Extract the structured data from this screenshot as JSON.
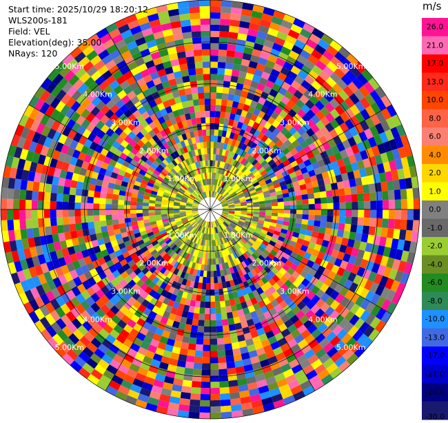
{
  "header": {
    "start_time": "Start time: 2025/10/29 18:20:12",
    "site": "WLS200s-181",
    "field": "Field: VEL",
    "elevation": "Elevation(deg): 35.00",
    "nrays": "NRays: 120"
  },
  "colorbar": {
    "unit": "m/s",
    "ticks": [
      "26.0",
      "21.0",
      "17.0",
      "13.0",
      "10.0",
      "8.0",
      "6.0",
      "4.0",
      "2.0",
      "1.0",
      "0.0",
      "-1.0",
      "-2.0",
      "-4.0",
      "-6.0",
      "-8.0",
      "-10.0",
      "-13.0",
      "-17.0",
      "-21.0",
      "-26.0",
      "-30.0"
    ],
    "colors": [
      "#ff1493",
      "#ff69b4",
      "#ff0000",
      "#ff2a1a",
      "#ff4500",
      "#ff6347",
      "#fa8072",
      "#ff8c00",
      "#ffd700",
      "#ffff00",
      "#808080",
      "#696969",
      "#9acd32",
      "#6b8e23",
      "#228b22",
      "#2e8b57",
      "#1e90ff",
      "#4169e1",
      "#0000ff",
      "#0000cd",
      "#000080",
      "#191970"
    ]
  },
  "chart_data": {
    "type": "heatmap",
    "projection": "polar (PPI)",
    "field": "VEL",
    "units": "m/s",
    "nrays": 120,
    "elevation_deg": 35.0,
    "range_ring_labels": [
      "1.00Km",
      "2.00Km",
      "3.00Km",
      "4.00Km",
      "5.00Km"
    ],
    "value_range": [
      -30.0,
      26.0
    ]
  }
}
